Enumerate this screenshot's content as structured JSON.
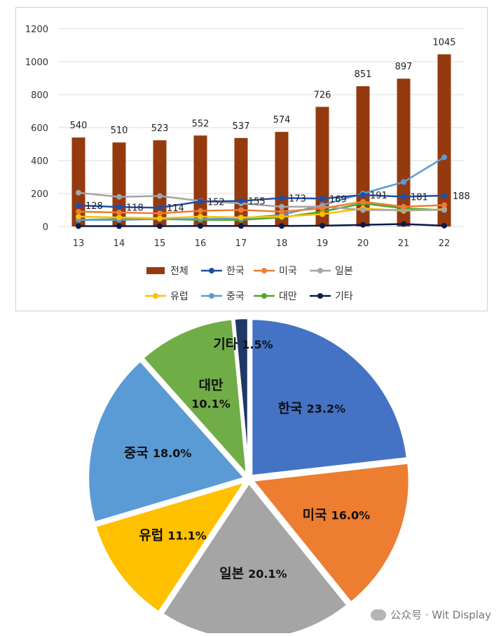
{
  "chart_data": [
    {
      "type": "bar",
      "categories": [
        "13",
        "14",
        "15",
        "16",
        "17",
        "18",
        "19",
        "20",
        "21",
        "22"
      ],
      "ylim": [
        0,
        1200
      ],
      "yticks": [
        0,
        200,
        400,
        600,
        800,
        1000,
        1200
      ],
      "grid": true,
      "legend_position": "bottom",
      "series": [
        {
          "name": "전체",
          "kind": "bar",
          "color": "#953a0f",
          "values": [
            540,
            510,
            523,
            552,
            537,
            574,
            726,
            851,
            897,
            1045
          ],
          "labels": [
            "540",
            "510",
            "523",
            "552",
            "537",
            "574",
            "726",
            "851",
            "897",
            "1045"
          ]
        },
        {
          "name": "한국",
          "kind": "line",
          "color": "#1f4ea8",
          "values": [
            128,
            118,
            114,
            152,
            155,
            173,
            169,
            191,
            181,
            188
          ],
          "labels": [
            "128",
            "118",
            "114",
            "152",
            "155",
            "173",
            "169",
            "191",
            "181",
            "188"
          ]
        },
        {
          "name": "미국",
          "kind": "line",
          "color": "#ed7d31",
          "values": [
            90,
            85,
            80,
            95,
            100,
            90,
            110,
            150,
            120,
            130
          ]
        },
        {
          "name": "일본",
          "kind": "line",
          "color": "#a5a5a5",
          "values": [
            205,
            180,
            185,
            155,
            140,
            120,
            120,
            100,
            100,
            100
          ]
        },
        {
          "name": "유럽",
          "kind": "line",
          "color": "#ffc000",
          "values": [
            60,
            55,
            50,
            60,
            55,
            60,
            75,
            110,
            95,
            105
          ]
        },
        {
          "name": "중국",
          "kind": "line",
          "color": "#5b9bd5",
          "values": [
            40,
            40,
            45,
            45,
            50,
            70,
            130,
            200,
            270,
            420
          ]
        },
        {
          "name": "대만",
          "kind": "line",
          "color": "#4ea72e",
          "values": [
            40,
            45,
            45,
            40,
            40,
            55,
            90,
            140,
            110,
            100
          ]
        },
        {
          "name": "기타",
          "kind": "line",
          "color": "#0b1a48",
          "values": [
            2,
            2,
            2,
            3,
            3,
            3,
            5,
            10,
            15,
            5
          ]
        }
      ]
    },
    {
      "type": "pie",
      "slices": [
        {
          "name": "한국",
          "value": 23.2,
          "label": "23.2%",
          "color": "#4472c4"
        },
        {
          "name": "미국",
          "value": 16.0,
          "label": "16.0%",
          "color": "#ed7d31"
        },
        {
          "name": "일본",
          "value": 20.1,
          "label": "20.1%",
          "color": "#a5a5a5"
        },
        {
          "name": "유럽",
          "value": 11.1,
          "label": "11.1%",
          "color": "#ffc000"
        },
        {
          "name": "중국",
          "value": 18.0,
          "label": "18.0%",
          "color": "#5b9bd5"
        },
        {
          "name": "대만",
          "value": 10.1,
          "label": "10.1%",
          "color": "#70ad47"
        },
        {
          "name": "기타",
          "value": 1.5,
          "label": "1.5%",
          "color": "#203864"
        }
      ]
    }
  ],
  "watermark": {
    "text": "公众号 · Wit Display"
  }
}
